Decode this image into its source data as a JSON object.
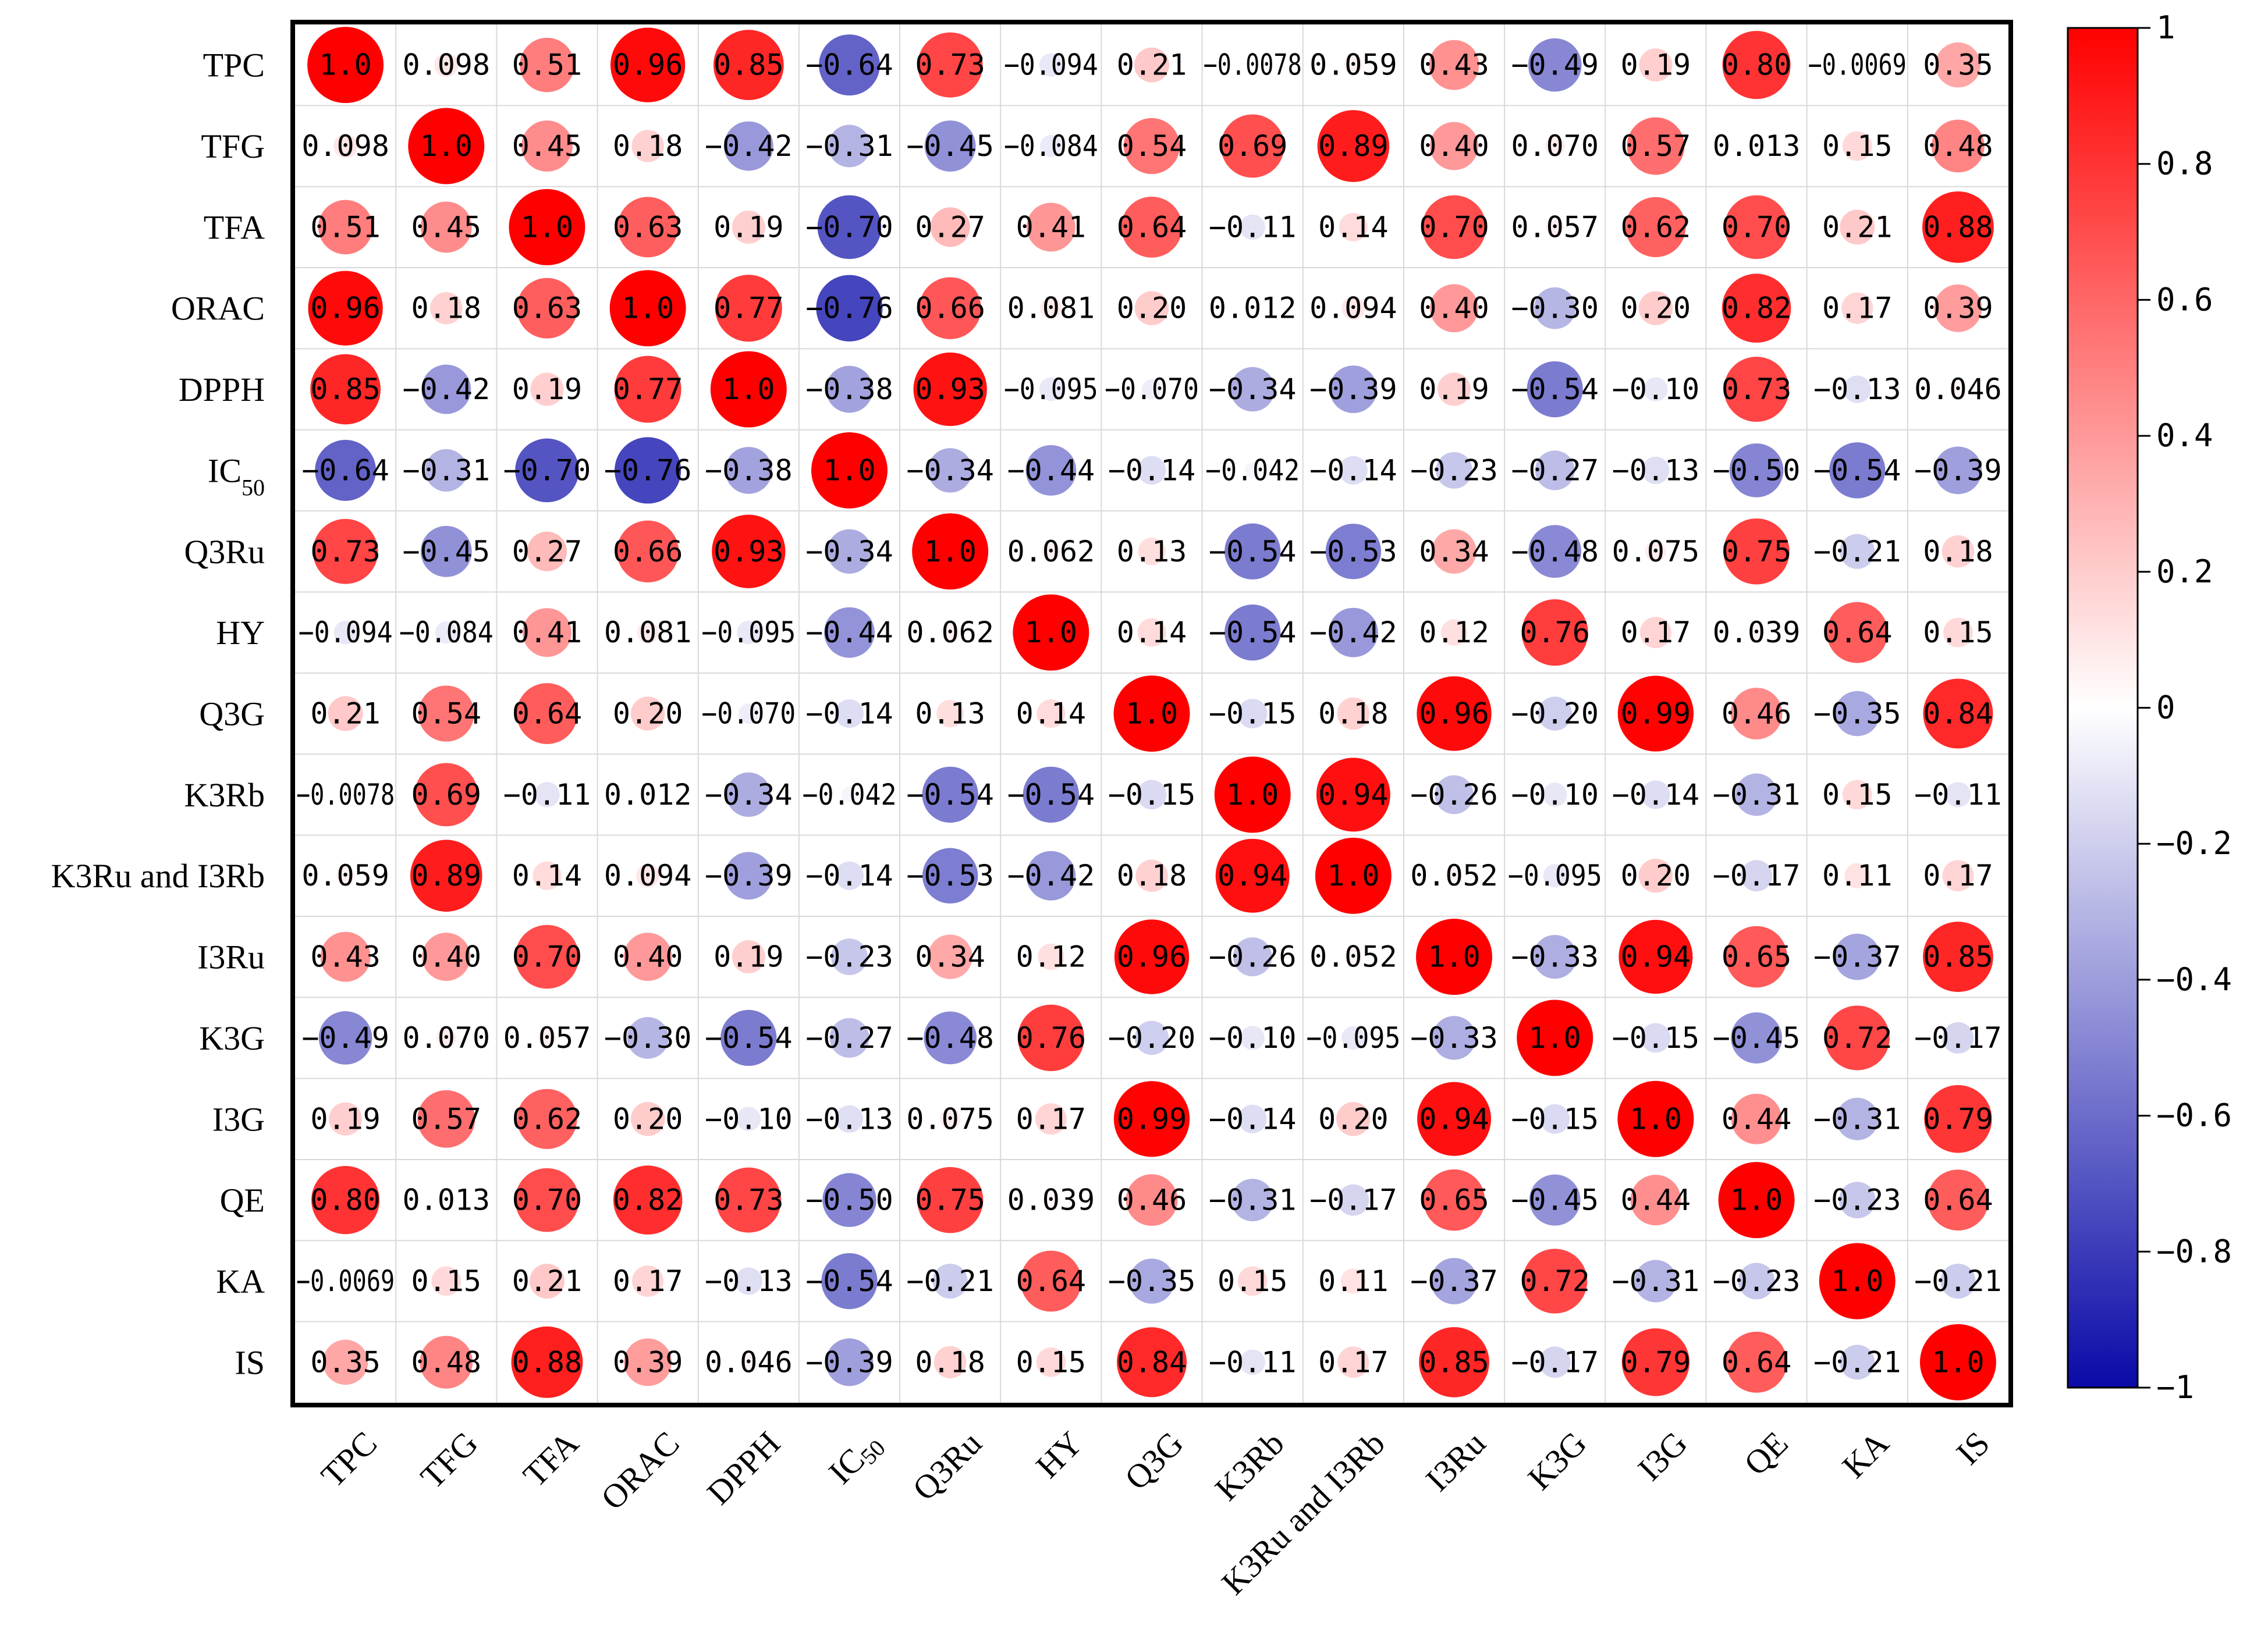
{
  "chart_data": {
    "type": "heatmap",
    "style": "circle correlation matrix",
    "labels": [
      "TPC",
      "TFG",
      "TFA",
      "ORAC",
      "DPPH",
      "IC50",
      "Q3Ru",
      "HY",
      "Q3G",
      "K3Rb",
      "K3Ru and I3Rb",
      "I3Ru",
      "K3G",
      "I3G",
      "QE",
      "KA",
      "IS"
    ],
    "matrix": [
      [
        "1.0",
        "0.098",
        "0.51",
        "0.96",
        "0.85",
        "−0.64",
        "0.73",
        "−0.094",
        "0.21",
        "−0.0078",
        "0.059",
        "0.43",
        "−0.49",
        "0.19",
        "0.80",
        "−0.0069",
        "0.35"
      ],
      [
        "0.098",
        "1.0",
        "0.45",
        "0.18",
        "−0.42",
        "−0.31",
        "−0.45",
        "−0.084",
        "0.54",
        "0.69",
        "0.89",
        "0.40",
        "0.070",
        "0.57",
        "0.013",
        "0.15",
        "0.48"
      ],
      [
        "0.51",
        "0.45",
        "1.0",
        "0.63",
        "0.19",
        "−0.70",
        "0.27",
        "0.41",
        "0.64",
        "−0.11",
        "0.14",
        "0.70",
        "0.057",
        "0.62",
        "0.70",
        "0.21",
        "0.88"
      ],
      [
        "0.96",
        "0.18",
        "0.63",
        "1.0",
        "0.77",
        "−0.76",
        "0.66",
        "0.081",
        "0.20",
        "0.012",
        "0.094",
        "0.40",
        "−0.30",
        "0.20",
        "0.82",
        "0.17",
        "0.39"
      ],
      [
        "0.85",
        "−0.42",
        "0.19",
        "0.77",
        "1.0",
        "−0.38",
        "0.93",
        "−0.095",
        "−0.070",
        "−0.34",
        "−0.39",
        "0.19",
        "−0.54",
        "−0.10",
        "0.73",
        "−0.13",
        "0.046"
      ],
      [
        "−0.64",
        "−0.31",
        "−0.70",
        "−0.76",
        "−0.38",
        "1.0",
        "−0.34",
        "−0.44",
        "−0.14",
        "−0.042",
        "−0.14",
        "−0.23",
        "−0.27",
        "−0.13",
        "−0.50",
        "−0.54",
        "−0.39"
      ],
      [
        "0.73",
        "−0.45",
        "0.27",
        "0.66",
        "0.93",
        "−0.34",
        "1.0",
        "0.062",
        "0.13",
        "−0.54",
        "−0.53",
        "0.34",
        "−0.48",
        "0.075",
        "0.75",
        "−0.21",
        "0.18"
      ],
      [
        "−0.094",
        "−0.084",
        "0.41",
        "0.081",
        "−0.095",
        "−0.44",
        "0.062",
        "1.0",
        "0.14",
        "−0.54",
        "−0.42",
        "0.12",
        "0.76",
        "0.17",
        "0.039",
        "0.64",
        "0.15"
      ],
      [
        "0.21",
        "0.54",
        "0.64",
        "0.20",
        "−0.070",
        "−0.14",
        "0.13",
        "0.14",
        "1.0",
        "−0.15",
        "0.18",
        "0.96",
        "−0.20",
        "0.99",
        "0.46",
        "−0.35",
        "0.84"
      ],
      [
        "−0.0078",
        "0.69",
        "−0.11",
        "0.012",
        "−0.34",
        "−0.042",
        "−0.54",
        "−0.54",
        "−0.15",
        "1.0",
        "0.94",
        "−0.26",
        "−0.10",
        "−0.14",
        "−0.31",
        "0.15",
        "−0.11"
      ],
      [
        "0.059",
        "0.89",
        "0.14",
        "0.094",
        "−0.39",
        "−0.14",
        "−0.53",
        "−0.42",
        "0.18",
        "0.94",
        "1.0",
        "0.052",
        "−0.095",
        "0.20",
        "−0.17",
        "0.11",
        "0.17"
      ],
      [
        "0.43",
        "0.40",
        "0.70",
        "0.40",
        "0.19",
        "−0.23",
        "0.34",
        "0.12",
        "0.96",
        "−0.26",
        "0.052",
        "1.0",
        "−0.33",
        "0.94",
        "0.65",
        "−0.37",
        "0.85"
      ],
      [
        "−0.49",
        "0.070",
        "0.057",
        "−0.30",
        "−0.54",
        "−0.27",
        "−0.48",
        "0.76",
        "−0.20",
        "−0.10",
        "−0.095",
        "−0.33",
        "1.0",
        "−0.15",
        "−0.45",
        "0.72",
        "−0.17"
      ],
      [
        "0.19",
        "0.57",
        "0.62",
        "0.20",
        "−0.10",
        "−0.13",
        "0.075",
        "0.17",
        "0.99",
        "−0.14",
        "0.20",
        "0.94",
        "−0.15",
        "1.0",
        "0.44",
        "−0.31",
        "0.79"
      ],
      [
        "0.80",
        "0.013",
        "0.70",
        "0.82",
        "0.73",
        "−0.50",
        "0.75",
        "0.039",
        "0.46",
        "−0.31",
        "−0.17",
        "0.65",
        "−0.45",
        "0.44",
        "1.0",
        "−0.23",
        "0.64"
      ],
      [
        "−0.0069",
        "0.15",
        "0.21",
        "0.17",
        "−0.13",
        "−0.54",
        "−0.21",
        "0.64",
        "−0.35",
        "0.15",
        "0.11",
        "−0.37",
        "0.72",
        "−0.31",
        "−0.23",
        "1.0",
        "−0.21"
      ],
      [
        "0.35",
        "0.48",
        "0.88",
        "0.39",
        "0.046",
        "−0.39",
        "0.18",
        "0.15",
        "0.84",
        "−0.11",
        "0.17",
        "0.85",
        "−0.17",
        "0.79",
        "0.64",
        "−0.21",
        "1.0"
      ]
    ],
    "colorbar": {
      "range": [
        -1,
        1
      ],
      "ticks": [
        "1",
        "0.8",
        "0.6",
        "0.4",
        "0.2",
        "0",
        "−0.2",
        "−0.4",
        "−0.6",
        "−0.8",
        "−1"
      ],
      "colors": {
        "negative": "#0a0aa8",
        "zero": "#ffffff",
        "positive": "#ff0000"
      }
    },
    "grid": true
  }
}
